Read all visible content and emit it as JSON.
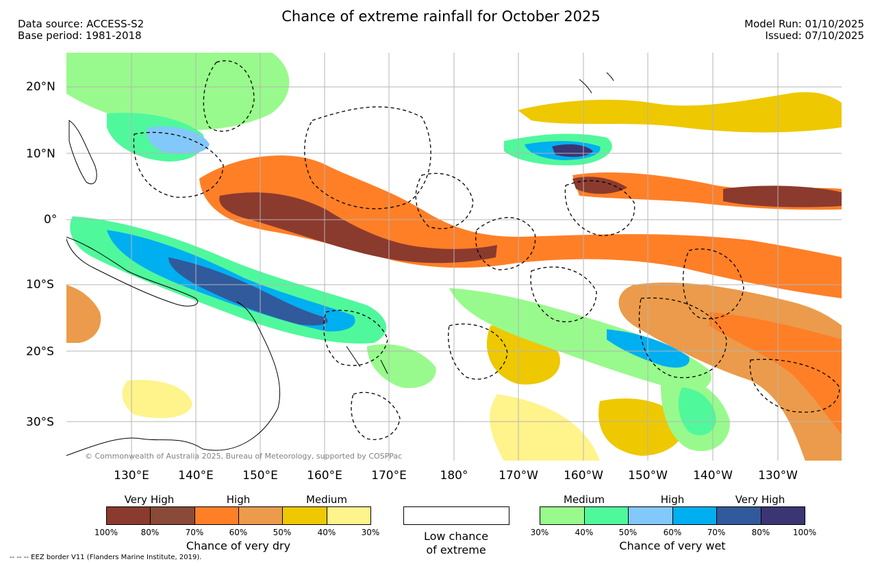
{
  "title": "Chance of extreme rainfall for October 2025",
  "meta": {
    "source": "Data source: ACCESS-S2",
    "base_period": "Base period: 1981-2018",
    "model_run": "Model Run: 01/10/2025",
    "issued": "Issued: 07/10/2025"
  },
  "map": {
    "lat_labels": [
      "20°N",
      "10°N",
      "0°",
      "10°S",
      "20°S",
      "30°S"
    ],
    "lon_labels": [
      "130°E",
      "140°E",
      "150°E",
      "160°E",
      "170°E",
      "180°",
      "170°W",
      "160°W",
      "150°W",
      "140°W",
      "130°W"
    ],
    "copyright": "© Commonwealth of Australia 2025, Bureau of Meteorology, supported by COSPPac"
  },
  "legend": {
    "dry": {
      "categories": [
        "Very High",
        "High",
        "Medium"
      ],
      "percents": [
        "100%",
        "80%",
        "70%",
        "60%",
        "50%",
        "40%",
        "30%"
      ],
      "caption": "Chance of very dry",
      "colors": [
        "#8b3a2e",
        "#8a4a38",
        "#ff7f27",
        "#eb9b4b",
        "#eec800",
        "#fff38c"
      ]
    },
    "neutral": {
      "caption_line1": "Low chance",
      "caption_line2": "of extreme"
    },
    "wet": {
      "categories": [
        "Medium",
        "High",
        "Very High"
      ],
      "percents": [
        "30%",
        "40%",
        "50%",
        "60%",
        "70%",
        "80%",
        "100%"
      ],
      "caption": "Chance of very wet",
      "colors": [
        "#98fa8c",
        "#50f89c",
        "#82c8fa",
        "#00aff0",
        "#315a9c",
        "#3c3574"
      ]
    }
  },
  "eez_note": "-- -- -- EEZ border V11 (Flanders Marine Institute, 2019)."
}
